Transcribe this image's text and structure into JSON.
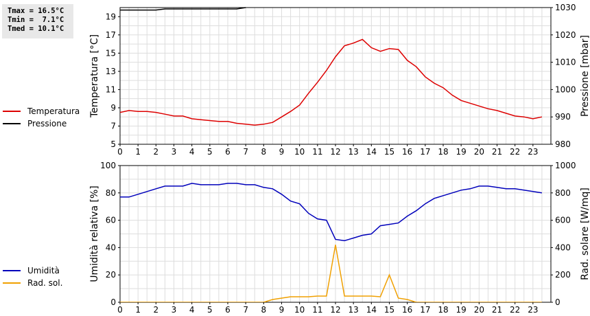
{
  "stats": {
    "tmax": "Tmax = 16.5°C",
    "tmin": "Tmin =  7.1°C",
    "tmed": "Tmed = 10.1°C"
  },
  "colors": {
    "temperatura": "#dd0000",
    "pressione": "#000000",
    "umidita": "#0000bb",
    "rad_sol": "#f0a000",
    "grid": "#dddddd"
  },
  "chart_data": [
    {
      "type": "line",
      "xlim": [
        0,
        24
      ],
      "x_ticks": [
        0,
        1,
        2,
        3,
        4,
        5,
        6,
        7,
        8,
        9,
        10,
        11,
        12,
        13,
        14,
        15,
        16,
        17,
        18,
        19,
        20,
        21,
        22,
        23
      ],
      "ylabel": "Temperatura [°C]",
      "ylim": [
        5,
        20
      ],
      "y_ticks": [
        5,
        7,
        9,
        11,
        13,
        15,
        17,
        19
      ],
      "y2label": "Pressione [mbar]",
      "y2lim": [
        980,
        1030
      ],
      "y2_ticks": [
        980,
        990,
        1000,
        1010,
        1020,
        1030
      ],
      "grid": true,
      "legend": "left",
      "series": [
        {
          "name": "Temperatura",
          "axis": "left",
          "x": [
            0,
            0.5,
            1,
            1.5,
            2,
            2.5,
            3,
            3.5,
            4,
            4.5,
            5,
            5.5,
            6,
            6.5,
            7,
            7.5,
            8,
            8.5,
            9,
            9.5,
            10,
            10.5,
            11,
            11.5,
            12,
            12.5,
            13,
            13.5,
            14,
            14.5,
            15,
            15.5,
            16,
            16.5,
            17,
            17.5,
            18,
            18.5,
            19,
            19.5,
            20,
            20.5,
            21,
            21.5,
            22,
            22.5,
            23,
            23.5
          ],
          "y": [
            8.5,
            8.7,
            8.6,
            8.6,
            8.5,
            8.3,
            8.1,
            8.1,
            7.8,
            7.7,
            7.6,
            7.5,
            7.5,
            7.3,
            7.2,
            7.1,
            7.2,
            7.4,
            8.0,
            8.6,
            9.3,
            10.6,
            11.8,
            13.1,
            14.6,
            15.8,
            16.1,
            16.5,
            15.6,
            15.2,
            15.5,
            15.4,
            14.2,
            13.5,
            12.4,
            11.7,
            11.2,
            10.4,
            9.8,
            9.5,
            9.2,
            8.9,
            8.7,
            8.4,
            8.1,
            8.0,
            7.8,
            8.0
          ]
        },
        {
          "name": "Pressione",
          "axis": "right",
          "x": [
            0,
            1,
            2,
            2.5,
            3,
            4,
            5,
            6,
            6.5,
            7
          ],
          "y": [
            1029.1,
            1029.1,
            1029.1,
            1029.5,
            1029.5,
            1029.5,
            1029.5,
            1029.5,
            1029.5,
            1030
          ]
        }
      ]
    },
    {
      "type": "line",
      "xlim": [
        0,
        24
      ],
      "x_ticks": [
        0,
        1,
        2,
        3,
        4,
        5,
        6,
        7,
        8,
        9,
        10,
        11,
        12,
        13,
        14,
        15,
        16,
        17,
        18,
        19,
        20,
        21,
        22,
        23
      ],
      "ylabel": "Umidità relativa [%]",
      "ylim": [
        0,
        100
      ],
      "y_ticks": [
        0,
        20,
        40,
        60,
        80,
        100
      ],
      "y2label": "Rad. solare [W/mq]",
      "y2lim": [
        0,
        1000
      ],
      "y2_ticks": [
        0,
        200,
        400,
        600,
        800,
        1000
      ],
      "grid": true,
      "legend": "left",
      "series": [
        {
          "name": "Umidità",
          "axis": "left",
          "x": [
            0,
            0.5,
            1,
            1.5,
            2,
            2.5,
            3,
            3.5,
            4,
            4.5,
            5,
            5.5,
            6,
            6.5,
            7,
            7.5,
            8,
            8.5,
            9,
            9.5,
            10,
            10.5,
            11,
            11.5,
            12,
            12.5,
            13,
            13.5,
            14,
            14.5,
            15,
            15.5,
            16,
            16.5,
            17,
            17.5,
            18,
            18.5,
            19,
            19.5,
            20,
            20.5,
            21,
            21.5,
            22,
            22.5,
            23,
            23.5
          ],
          "y": [
            77,
            77,
            79,
            81,
            83,
            85,
            85,
            85,
            87,
            86,
            86,
            86,
            87,
            87,
            86,
            86,
            84,
            83,
            79,
            74,
            72,
            65,
            61,
            60,
            46,
            45,
            47,
            49,
            50,
            56,
            57,
            58,
            63,
            67,
            72,
            76,
            78,
            80,
            82,
            83,
            85,
            85,
            84,
            83,
            83,
            82,
            81,
            80
          ]
        },
        {
          "name": "Rad. sol.",
          "axis": "right",
          "x": [
            0,
            1,
            2,
            3,
            4,
            5,
            6,
            7,
            7.5,
            8,
            8.5,
            9,
            9.5,
            10,
            10.5,
            11,
            11.5,
            12,
            12.5,
            13,
            13.5,
            14,
            14.5,
            15,
            15.5,
            16,
            16.5,
            17,
            18,
            19,
            20,
            21,
            22,
            23,
            23.5
          ],
          "y": [
            0,
            0,
            0,
            0,
            0,
            0,
            0,
            0,
            0,
            0,
            20,
            30,
            40,
            40,
            40,
            45,
            45,
            420,
            45,
            45,
            45,
            45,
            40,
            200,
            30,
            20,
            0,
            0,
            0,
            0,
            0,
            0,
            0,
            0,
            0
          ]
        }
      ]
    }
  ]
}
